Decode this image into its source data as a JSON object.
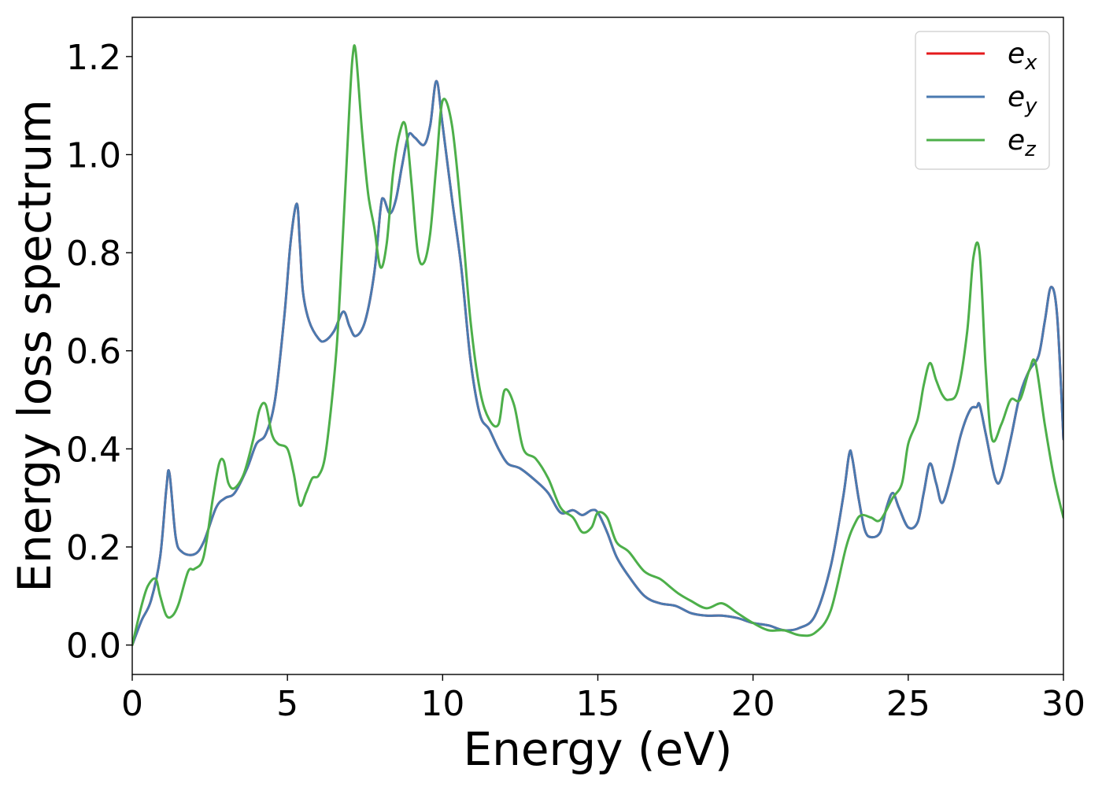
{
  "chart_data": {
    "type": "line",
    "title": "",
    "xlabel": "Energy (eV)",
    "ylabel": "Energy loss spectrum",
    "xlim": [
      0,
      30
    ],
    "ylim": [
      -0.06,
      1.28
    ],
    "xticks": [
      0,
      5,
      10,
      15,
      20,
      25,
      30
    ],
    "xtick_labels": [
      "0",
      "5",
      "10",
      "15",
      "20",
      "25",
      "30"
    ],
    "yticks": [
      0.0,
      0.2,
      0.4,
      0.6,
      0.8,
      1.0,
      1.2
    ],
    "ytick_labels": [
      "0.0",
      "0.2",
      "0.4",
      "0.6",
      "0.8",
      "1.0",
      "1.2"
    ],
    "grid": false,
    "legend_position": "top-right",
    "series": [
      {
        "name": "e_x",
        "label_base": "e",
        "label_sub": "x",
        "color": "#e41a1c",
        "x": [
          0,
          0.3,
          0.6,
          0.9,
          1.1,
          1.2,
          1.4,
          1.6,
          2.0,
          2.3,
          2.7,
          3.0,
          3.3,
          3.7,
          4.0,
          4.3,
          4.6,
          4.9,
          5.1,
          5.3,
          5.4,
          5.5,
          5.7,
          6.0,
          6.2,
          6.5,
          6.8,
          7.0,
          7.2,
          7.5,
          7.8,
          8.0,
          8.1,
          8.3,
          8.5,
          8.7,
          8.9,
          9.1,
          9.4,
          9.6,
          9.8,
          10.0,
          10.3,
          10.6,
          10.9,
          11.2,
          11.5,
          11.8,
          12.1,
          12.5,
          13.0,
          13.4,
          13.8,
          14.2,
          14.5,
          14.8,
          15.0,
          15.3,
          15.6,
          16.0,
          16.5,
          17.0,
          17.5,
          18.0,
          18.5,
          19.0,
          19.5,
          20.0,
          20.5,
          21.0,
          21.5,
          22.0,
          22.5,
          22.9,
          23.1,
          23.2,
          23.4,
          23.6,
          23.8,
          24.1,
          24.3,
          24.5,
          24.7,
          25.0,
          25.3,
          25.5,
          25.7,
          25.9,
          26.1,
          26.4,
          26.7,
          27.0,
          27.2,
          27.3,
          27.5,
          27.8,
          28.0,
          28.3,
          28.6,
          28.9,
          29.2,
          29.4,
          29.6,
          29.8,
          30.0
        ],
        "y": [
          0.0,
          0.05,
          0.09,
          0.18,
          0.32,
          0.35,
          0.22,
          0.19,
          0.185,
          0.21,
          0.28,
          0.3,
          0.31,
          0.36,
          0.41,
          0.43,
          0.5,
          0.67,
          0.82,
          0.9,
          0.82,
          0.72,
          0.66,
          0.625,
          0.62,
          0.64,
          0.68,
          0.65,
          0.63,
          0.66,
          0.76,
          0.89,
          0.91,
          0.88,
          0.91,
          0.98,
          1.04,
          1.035,
          1.02,
          1.06,
          1.15,
          1.06,
          0.91,
          0.77,
          0.58,
          0.47,
          0.44,
          0.4,
          0.37,
          0.36,
          0.335,
          0.31,
          0.27,
          0.275,
          0.265,
          0.275,
          0.27,
          0.23,
          0.18,
          0.14,
          0.1,
          0.085,
          0.08,
          0.065,
          0.06,
          0.06,
          0.055,
          0.045,
          0.04,
          0.03,
          0.035,
          0.06,
          0.16,
          0.3,
          0.39,
          0.38,
          0.3,
          0.235,
          0.22,
          0.23,
          0.28,
          0.31,
          0.28,
          0.24,
          0.25,
          0.31,
          0.37,
          0.33,
          0.29,
          0.35,
          0.43,
          0.48,
          0.485,
          0.49,
          0.43,
          0.34,
          0.34,
          0.42,
          0.51,
          0.56,
          0.59,
          0.66,
          0.73,
          0.67,
          0.42
        ]
      },
      {
        "name": "e_y",
        "label_base": "e",
        "label_sub": "y",
        "color": "#4a7ab0",
        "x": [
          0,
          0.3,
          0.6,
          0.9,
          1.1,
          1.2,
          1.4,
          1.6,
          2.0,
          2.3,
          2.7,
          3.0,
          3.3,
          3.7,
          4.0,
          4.3,
          4.6,
          4.9,
          5.1,
          5.3,
          5.4,
          5.5,
          5.7,
          6.0,
          6.2,
          6.5,
          6.8,
          7.0,
          7.2,
          7.5,
          7.8,
          8.0,
          8.1,
          8.3,
          8.5,
          8.7,
          8.9,
          9.1,
          9.4,
          9.6,
          9.8,
          10.0,
          10.3,
          10.6,
          10.9,
          11.2,
          11.5,
          11.8,
          12.1,
          12.5,
          13.0,
          13.4,
          13.8,
          14.2,
          14.5,
          14.8,
          15.0,
          15.3,
          15.6,
          16.0,
          16.5,
          17.0,
          17.5,
          18.0,
          18.5,
          19.0,
          19.5,
          20.0,
          20.5,
          21.0,
          21.5,
          22.0,
          22.5,
          22.9,
          23.1,
          23.2,
          23.4,
          23.6,
          23.8,
          24.1,
          24.3,
          24.5,
          24.7,
          25.0,
          25.3,
          25.5,
          25.7,
          25.9,
          26.1,
          26.4,
          26.7,
          27.0,
          27.2,
          27.3,
          27.5,
          27.8,
          28.0,
          28.3,
          28.6,
          28.9,
          29.2,
          29.4,
          29.6,
          29.8,
          30.0
        ],
        "y": [
          0.0,
          0.05,
          0.09,
          0.18,
          0.32,
          0.35,
          0.22,
          0.19,
          0.185,
          0.21,
          0.28,
          0.3,
          0.31,
          0.36,
          0.41,
          0.43,
          0.5,
          0.67,
          0.82,
          0.9,
          0.82,
          0.72,
          0.66,
          0.625,
          0.62,
          0.64,
          0.68,
          0.65,
          0.63,
          0.66,
          0.76,
          0.89,
          0.91,
          0.88,
          0.91,
          0.98,
          1.04,
          1.035,
          1.02,
          1.06,
          1.15,
          1.06,
          0.91,
          0.77,
          0.58,
          0.47,
          0.44,
          0.4,
          0.37,
          0.36,
          0.335,
          0.31,
          0.27,
          0.275,
          0.265,
          0.275,
          0.27,
          0.23,
          0.18,
          0.14,
          0.1,
          0.085,
          0.08,
          0.065,
          0.06,
          0.06,
          0.055,
          0.045,
          0.04,
          0.03,
          0.035,
          0.06,
          0.16,
          0.3,
          0.39,
          0.38,
          0.3,
          0.235,
          0.22,
          0.23,
          0.28,
          0.31,
          0.28,
          0.24,
          0.25,
          0.31,
          0.37,
          0.33,
          0.29,
          0.35,
          0.43,
          0.48,
          0.485,
          0.49,
          0.43,
          0.34,
          0.34,
          0.42,
          0.51,
          0.56,
          0.59,
          0.66,
          0.73,
          0.67,
          0.42
        ]
      },
      {
        "name": "e_z",
        "label_base": "e",
        "label_sub": "z",
        "color": "#4daf4a",
        "x": [
          0,
          0.3,
          0.5,
          0.75,
          0.9,
          1.1,
          1.3,
          1.5,
          1.8,
          2.0,
          2.3,
          2.6,
          2.8,
          2.95,
          3.1,
          3.3,
          3.6,
          3.9,
          4.1,
          4.3,
          4.5,
          4.7,
          5.0,
          5.2,
          5.4,
          5.6,
          5.8,
          6.0,
          6.2,
          6.4,
          6.6,
          6.8,
          7.0,
          7.1,
          7.2,
          7.4,
          7.6,
          7.8,
          8.0,
          8.2,
          8.4,
          8.6,
          8.8,
          9.0,
          9.2,
          9.4,
          9.6,
          9.8,
          10.0,
          10.3,
          10.6,
          10.9,
          11.2,
          11.5,
          11.8,
          12.0,
          12.3,
          12.6,
          13.0,
          13.4,
          13.8,
          14.2,
          14.5,
          14.8,
          15.0,
          15.3,
          15.6,
          16.0,
          16.5,
          17.0,
          17.3,
          17.6,
          18.0,
          18.5,
          19.0,
          19.5,
          20.0,
          20.5,
          21.0,
          21.5,
          22.0,
          22.5,
          23.0,
          23.3,
          23.5,
          23.8,
          24.1,
          24.5,
          24.8,
          25.0,
          25.3,
          25.5,
          25.7,
          25.9,
          26.1,
          26.3,
          26.6,
          26.9,
          27.1,
          27.3,
          27.5,
          27.7,
          28.0,
          28.3,
          28.6,
          28.9,
          29.1,
          29.4,
          29.7,
          30.0
        ],
        "y": [
          0.0,
          0.08,
          0.12,
          0.135,
          0.1,
          0.06,
          0.06,
          0.085,
          0.15,
          0.155,
          0.18,
          0.3,
          0.37,
          0.375,
          0.33,
          0.32,
          0.35,
          0.42,
          0.48,
          0.49,
          0.43,
          0.41,
          0.4,
          0.35,
          0.285,
          0.31,
          0.34,
          0.345,
          0.38,
          0.48,
          0.62,
          0.85,
          1.1,
          1.2,
          1.21,
          1.05,
          0.92,
          0.85,
          0.77,
          0.82,
          0.96,
          1.04,
          1.06,
          0.94,
          0.8,
          0.78,
          0.84,
          0.98,
          1.11,
          1.06,
          0.88,
          0.66,
          0.52,
          0.46,
          0.45,
          0.52,
          0.49,
          0.4,
          0.38,
          0.34,
          0.28,
          0.26,
          0.23,
          0.24,
          0.27,
          0.26,
          0.21,
          0.19,
          0.15,
          0.135,
          0.12,
          0.105,
          0.09,
          0.075,
          0.085,
          0.065,
          0.045,
          0.03,
          0.03,
          0.02,
          0.025,
          0.07,
          0.2,
          0.25,
          0.265,
          0.26,
          0.255,
          0.3,
          0.33,
          0.41,
          0.46,
          0.53,
          0.575,
          0.54,
          0.51,
          0.5,
          0.52,
          0.64,
          0.79,
          0.8,
          0.56,
          0.42,
          0.45,
          0.5,
          0.5,
          0.56,
          0.575,
          0.45,
          0.34,
          0.26
        ]
      }
    ]
  }
}
